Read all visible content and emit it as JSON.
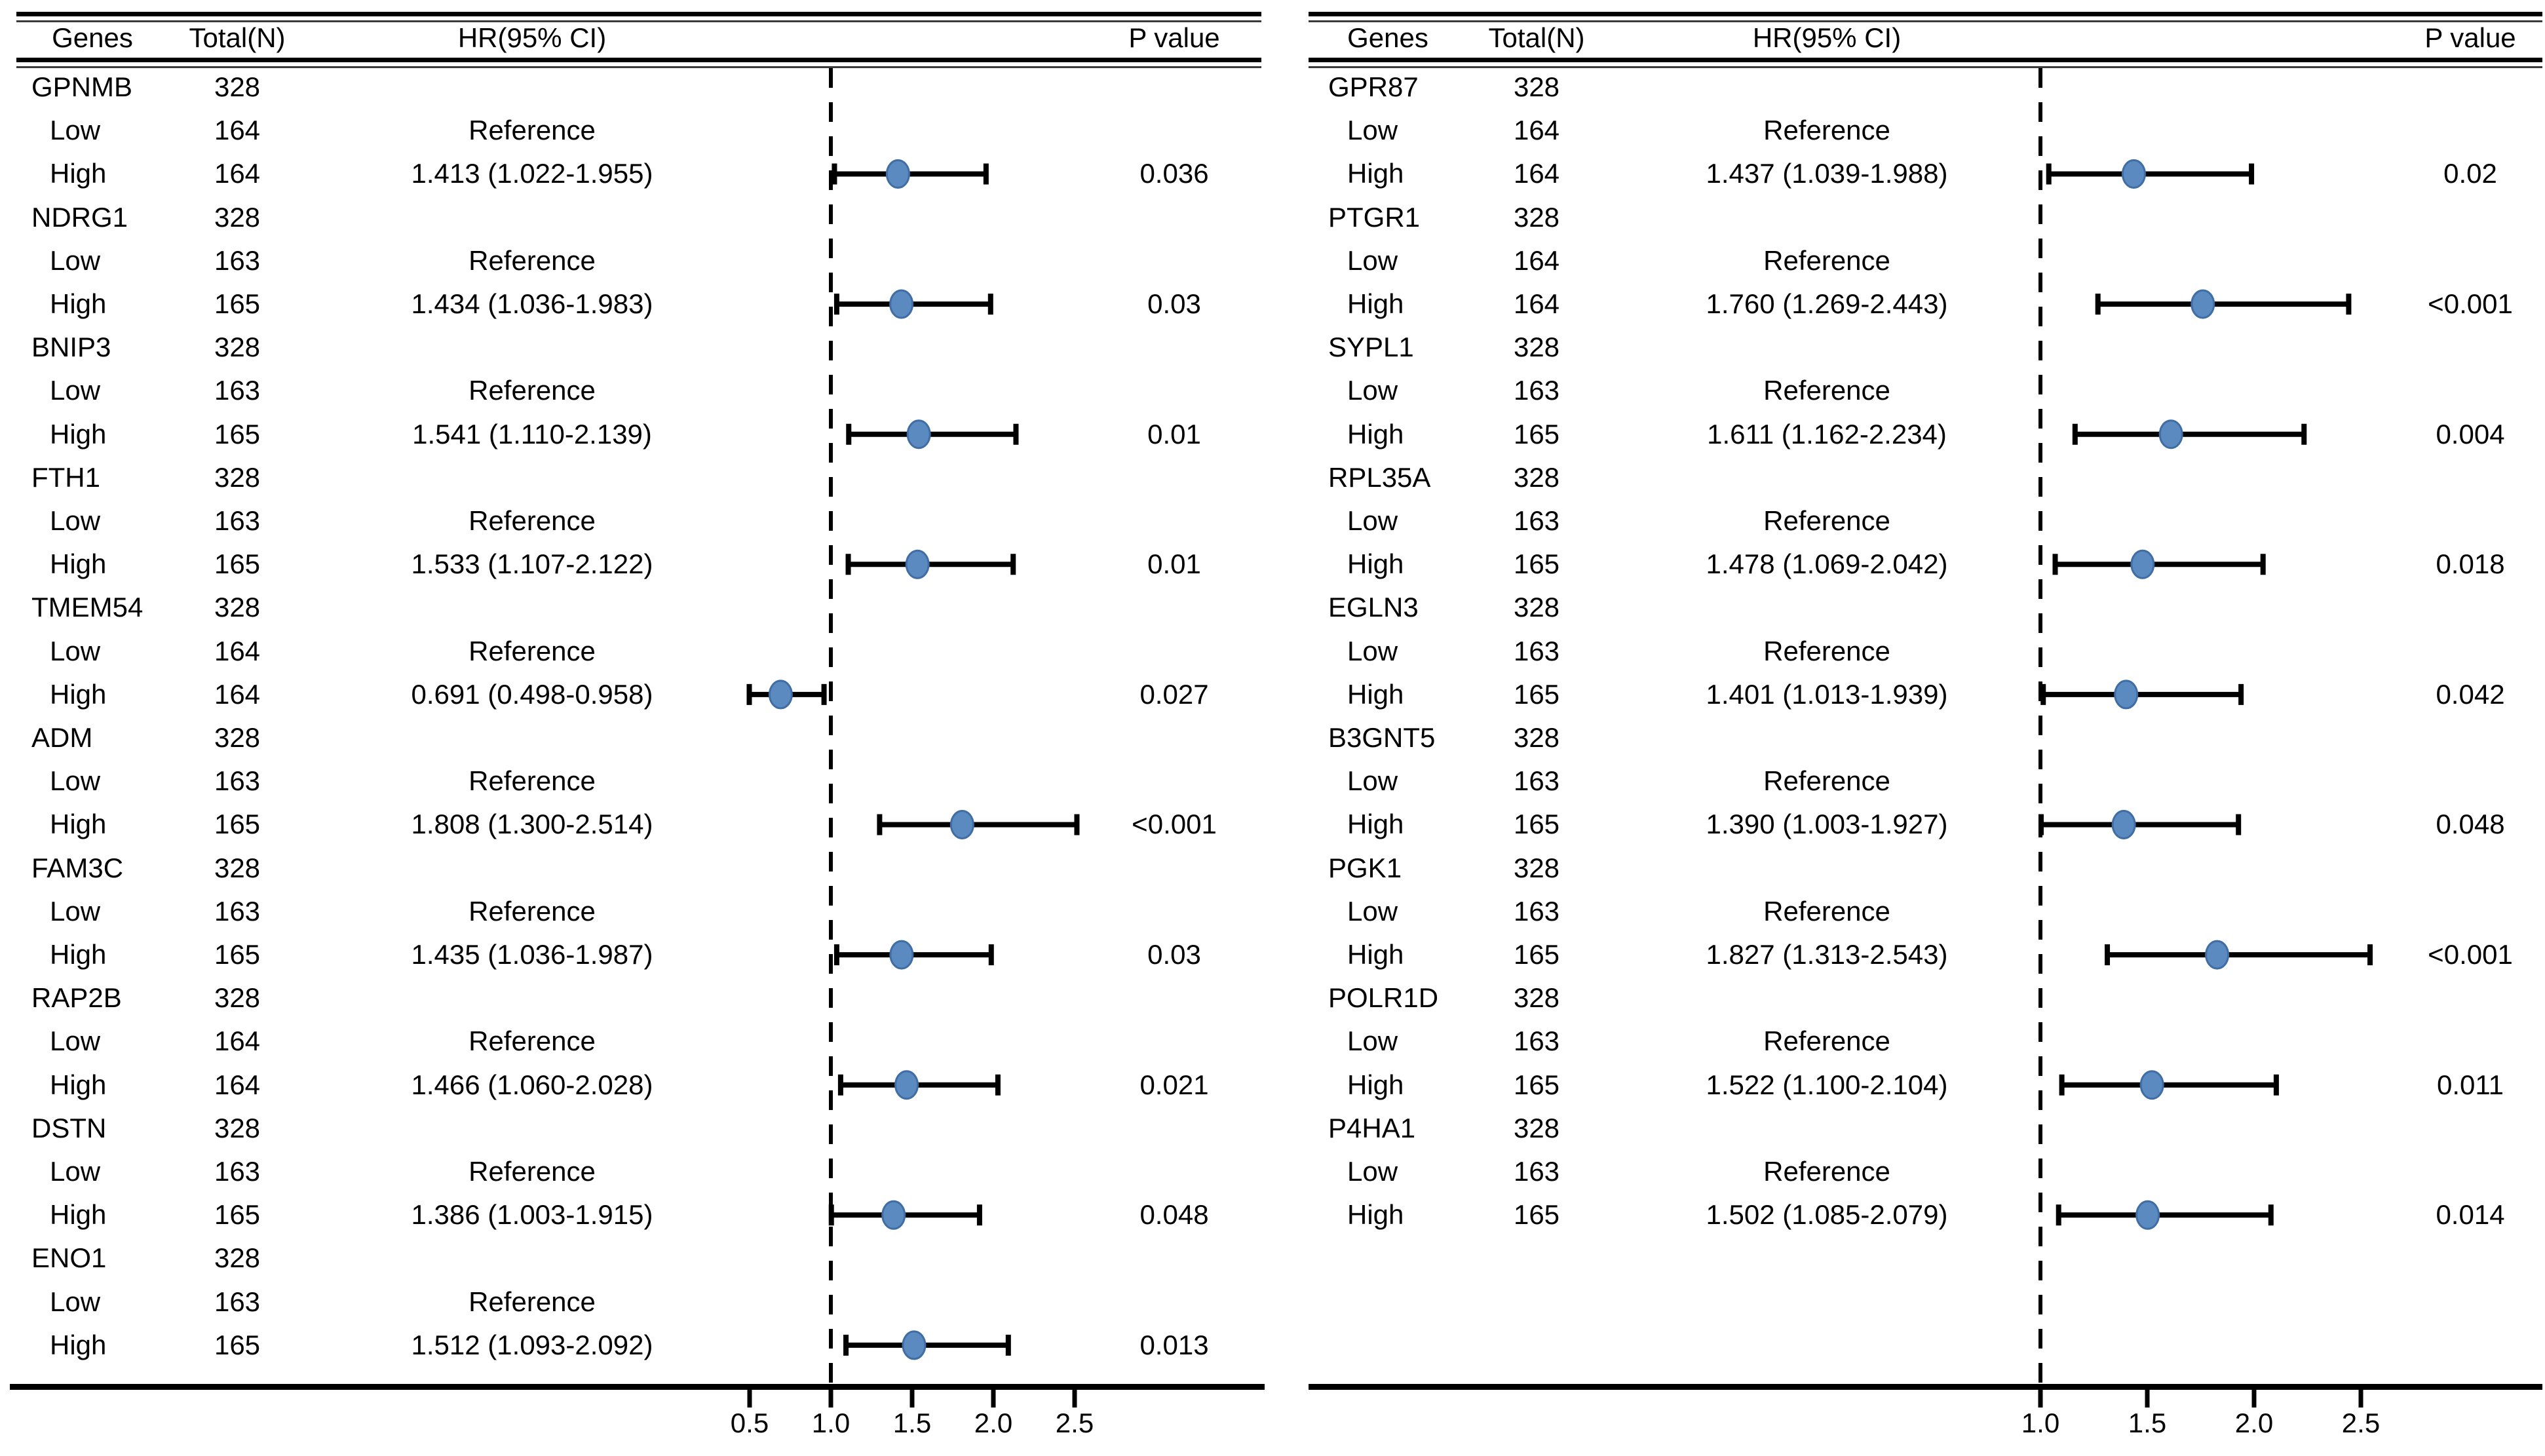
{
  "figure": {
    "background": "#ffffff",
    "marker_fill": "#5a8ac0",
    "marker_stroke": "#3f6da4",
    "line_color": "#000000"
  },
  "chart_data": {
    "type": "forest",
    "reference_label": "Reference",
    "row_labels": {
      "low": "Low",
      "high": "High"
    },
    "panels": [
      {
        "columns": {
          "genes": "Genes",
          "total": "Total(N)",
          "hr": "HR(95% CI)",
          "p": "P value"
        },
        "axis": {
          "tick_labels": [
            "0.5",
            "1.0",
            "1.5",
            "2.0",
            "2.5"
          ],
          "tick_values": [
            0.5,
            1.0,
            1.5,
            2.0,
            2.5
          ],
          "ref_value": 1.0,
          "xlim": [
            0.3,
            3.1
          ]
        },
        "genes": [
          {
            "name": "GPNMB",
            "total": "328",
            "low_total": "164",
            "high_total": "164",
            "hr": 1.413,
            "lo": 1.022,
            "hi": 1.955,
            "hr_text": "1.413 (1.022-1.955)",
            "p": "0.036"
          },
          {
            "name": "NDRG1",
            "total": "328",
            "low_total": "163",
            "high_total": "165",
            "hr": 1.434,
            "lo": 1.036,
            "hi": 1.983,
            "hr_text": "1.434 (1.036-1.983)",
            "p": "0.03"
          },
          {
            "name": "BNIP3",
            "total": "328",
            "low_total": "163",
            "high_total": "165",
            "hr": 1.541,
            "lo": 1.11,
            "hi": 2.139,
            "hr_text": "1.541 (1.110-2.139)",
            "p": "0.01"
          },
          {
            "name": "FTH1",
            "total": "328",
            "low_total": "163",
            "high_total": "165",
            "hr": 1.533,
            "lo": 1.107,
            "hi": 2.122,
            "hr_text": "1.533 (1.107-2.122)",
            "p": "0.01"
          },
          {
            "name": "TMEM54",
            "total": "328",
            "low_total": "164",
            "high_total": "164",
            "hr": 0.691,
            "lo": 0.498,
            "hi": 0.958,
            "hr_text": "0.691 (0.498-0.958)",
            "p": "0.027"
          },
          {
            "name": "ADM",
            "total": "328",
            "low_total": "163",
            "high_total": "165",
            "hr": 1.808,
            "lo": 1.3,
            "hi": 2.514,
            "hr_text": "1.808 (1.300-2.514)",
            "p": "<0.001"
          },
          {
            "name": "FAM3C",
            "total": "328",
            "low_total": "163",
            "high_total": "165",
            "hr": 1.435,
            "lo": 1.036,
            "hi": 1.987,
            "hr_text": "1.435 (1.036-1.987)",
            "p": "0.03"
          },
          {
            "name": "RAP2B",
            "total": "328",
            "low_total": "164",
            "high_total": "164",
            "hr": 1.466,
            "lo": 1.06,
            "hi": 2.028,
            "hr_text": "1.466 (1.060-2.028)",
            "p": "0.021"
          },
          {
            "name": "DSTN",
            "total": "328",
            "low_total": "163",
            "high_total": "165",
            "hr": 1.386,
            "lo": 1.003,
            "hi": 1.915,
            "hr_text": "1.386 (1.003-1.915)",
            "p": "0.048"
          },
          {
            "name": "ENO1",
            "total": "328",
            "low_total": "163",
            "high_total": "165",
            "hr": 1.512,
            "lo": 1.093,
            "hi": 2.092,
            "hr_text": "1.512 (1.093-2.092)",
            "p": "0.013"
          }
        ]
      },
      {
        "columns": {
          "genes": "Genes",
          "total": "Total(N)",
          "hr": "HR(95% CI)",
          "p": "P value"
        },
        "axis": {
          "tick_labels": [
            "1.0",
            "1.5",
            "2.0",
            "2.5"
          ],
          "tick_values": [
            1.0,
            1.5,
            2.0,
            2.5
          ],
          "ref_value": 1.0,
          "xlim": [
            0.55,
            3.2
          ]
        },
        "genes": [
          {
            "name": "GPR87",
            "total": "328",
            "low_total": "164",
            "high_total": "164",
            "hr": 1.437,
            "lo": 1.039,
            "hi": 1.988,
            "hr_text": "1.437 (1.039-1.988)",
            "p": "0.02"
          },
          {
            "name": "PTGR1",
            "total": "328",
            "low_total": "164",
            "high_total": "164",
            "hr": 1.76,
            "lo": 1.269,
            "hi": 2.443,
            "hr_text": "1.760 (1.269-2.443)",
            "p": "<0.001"
          },
          {
            "name": "SYPL1",
            "total": "328",
            "low_total": "163",
            "high_total": "165",
            "hr": 1.611,
            "lo": 1.162,
            "hi": 2.234,
            "hr_text": "1.611 (1.162-2.234)",
            "p": "0.004"
          },
          {
            "name": "RPL35A",
            "total": "328",
            "low_total": "163",
            "high_total": "165",
            "hr": 1.478,
            "lo": 1.069,
            "hi": 2.042,
            "hr_text": "1.478 (1.069-2.042)",
            "p": "0.018"
          },
          {
            "name": "EGLN3",
            "total": "328",
            "low_total": "163",
            "high_total": "165",
            "hr": 1.401,
            "lo": 1.013,
            "hi": 1.939,
            "hr_text": "1.401 (1.013-1.939)",
            "p": "0.042"
          },
          {
            "name": "B3GNT5",
            "total": "328",
            "low_total": "163",
            "high_total": "165",
            "hr": 1.39,
            "lo": 1.003,
            "hi": 1.927,
            "hr_text": "1.390 (1.003-1.927)",
            "p": "0.048"
          },
          {
            "name": "PGK1",
            "total": "328",
            "low_total": "163",
            "high_total": "165",
            "hr": 1.827,
            "lo": 1.313,
            "hi": 2.543,
            "hr_text": "1.827 (1.313-2.543)",
            "p": "<0.001"
          },
          {
            "name": "POLR1D",
            "total": "328",
            "low_total": "163",
            "high_total": "165",
            "hr": 1.522,
            "lo": 1.1,
            "hi": 2.104,
            "hr_text": "1.522 (1.100-2.104)",
            "p": "0.011"
          },
          {
            "name": "P4HA1",
            "total": "328",
            "low_total": "163",
            "high_total": "165",
            "hr": 1.502,
            "lo": 1.085,
            "hi": 2.079,
            "hr_text": "1.502 (1.085-2.079)",
            "p": "0.014"
          }
        ]
      }
    ]
  }
}
